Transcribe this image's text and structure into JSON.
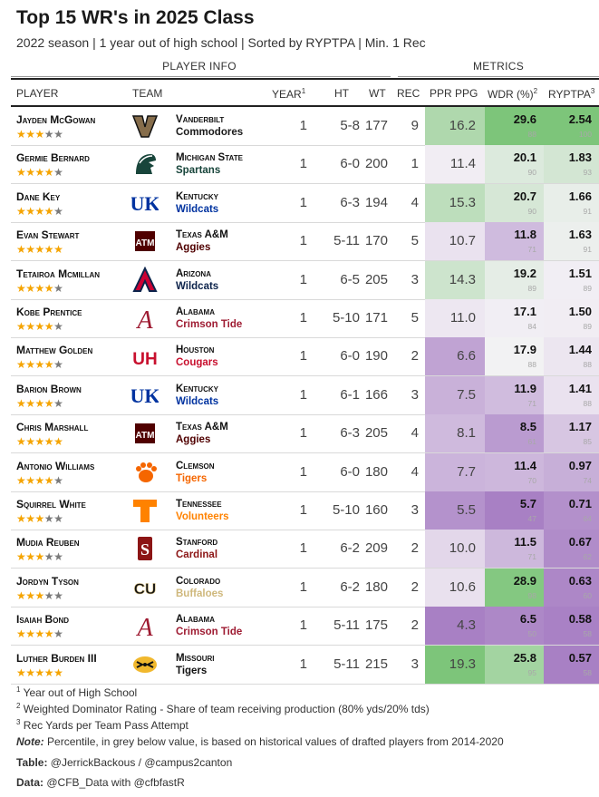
{
  "title": "Top 15 WR's in 2025 Class",
  "subtitle": "2022 season | 1 year out of high school | Sorted by RYPTPA | Min. 1 Rec",
  "spanners": {
    "player_info": "PLAYER INFO",
    "metrics": "METRICS"
  },
  "columns": {
    "player": "PLAYER",
    "team": "TEAM",
    "year": "YEAR",
    "year_sup": "1",
    "ht": "HT",
    "wt": "WT",
    "rec": "REC",
    "ppr": "PPR PPG",
    "wdr": "WDR (%)",
    "wdr_sup": "2",
    "ryptpa": "RYPTPA",
    "ryptpa_sup": "3"
  },
  "rows": [
    {
      "name": "Jayden McGowan",
      "stars": 3,
      "school": "Vanderbilt",
      "nickname": "Commodores",
      "team_color": "#1a1a1a",
      "year": "1",
      "ht": "5-8",
      "wt": "177",
      "rec": "9",
      "ppr": "16.2",
      "wdr": "29.6",
      "wdr_pct": "88",
      "ryptpa": "2.54",
      "ryptpa_pct": "100",
      "logo": "vanderbilt-v-logo"
    },
    {
      "name": "Germie Bernard",
      "stars": 4,
      "school": "Michigan State",
      "nickname": "Spartans",
      "team_color": "#18453b",
      "year": "1",
      "ht": "6-0",
      "wt": "200",
      "rec": "1",
      "ppr": "11.4",
      "wdr": "20.1",
      "wdr_pct": "90",
      "ryptpa": "1.83",
      "ryptpa_pct": "93",
      "logo": "spartan-helmet-logo"
    },
    {
      "name": "Dane Key",
      "stars": 4,
      "school": "Kentucky",
      "nickname": "Wildcats",
      "team_color": "#0033a0",
      "year": "1",
      "ht": "6-3",
      "wt": "194",
      "rec": "4",
      "ppr": "15.3",
      "wdr": "20.7",
      "wdr_pct": "90",
      "ryptpa": "1.66",
      "ryptpa_pct": "91",
      "logo": "uk-logo"
    },
    {
      "name": "Evan Stewart",
      "stars": 5,
      "school": "Texas A&M",
      "nickname": "Aggies",
      "team_color": "#500000",
      "year": "1",
      "ht": "5-11",
      "wt": "170",
      "rec": "5",
      "ppr": "10.7",
      "wdr": "11.8",
      "wdr_pct": "71",
      "ryptpa": "1.63",
      "ryptpa_pct": "91",
      "logo": "atm-logo"
    },
    {
      "name": "Tetairoa Mcmillan",
      "stars": 4,
      "school": "Arizona",
      "nickname": "Wildcats",
      "team_color": "#0c234b",
      "year": "1",
      "ht": "6-5",
      "wt": "205",
      "rec": "3",
      "ppr": "14.3",
      "wdr": "19.2",
      "wdr_pct": "89",
      "ryptpa": "1.51",
      "ryptpa_pct": "89",
      "logo": "arizona-a-logo"
    },
    {
      "name": "Kobe Prentice",
      "stars": 4,
      "school": "Alabama",
      "nickname": "Crimson Tide",
      "team_color": "#9e1b32",
      "year": "1",
      "ht": "5-10",
      "wt": "171",
      "rec": "5",
      "ppr": "11.0",
      "wdr": "17.1",
      "wdr_pct": "84",
      "ryptpa": "1.50",
      "ryptpa_pct": "89",
      "logo": "alabama-a-logo"
    },
    {
      "name": "Matthew Golden",
      "stars": 4,
      "school": "Houston",
      "nickname": "Cougars",
      "team_color": "#c8102e",
      "year": "1",
      "ht": "6-0",
      "wt": "190",
      "rec": "2",
      "ppr": "6.6",
      "wdr": "17.9",
      "wdr_pct": "88",
      "ryptpa": "1.44",
      "ryptpa_pct": "88",
      "logo": "houston-uh-logo"
    },
    {
      "name": "Barion Brown",
      "stars": 4,
      "school": "Kentucky",
      "nickname": "Wildcats",
      "team_color": "#0033a0",
      "year": "1",
      "ht": "6-1",
      "wt": "166",
      "rec": "3",
      "ppr": "7.5",
      "wdr": "11.9",
      "wdr_pct": "71",
      "ryptpa": "1.41",
      "ryptpa_pct": "88",
      "logo": "uk-logo"
    },
    {
      "name": "Chris Marshall",
      "stars": 5,
      "school": "Texas A&M",
      "nickname": "Aggies",
      "team_color": "#500000",
      "year": "1",
      "ht": "6-3",
      "wt": "205",
      "rec": "4",
      "ppr": "8.1",
      "wdr": "8.5",
      "wdr_pct": "61",
      "ryptpa": "1.17",
      "ryptpa_pct": "85",
      "logo": "atm-logo"
    },
    {
      "name": "Antonio Williams",
      "stars": 4,
      "school": "Clemson",
      "nickname": "Tigers",
      "team_color": "#f56600",
      "year": "1",
      "ht": "6-0",
      "wt": "180",
      "rec": "4",
      "ppr": "7.7",
      "wdr": "11.4",
      "wdr_pct": "70",
      "ryptpa": "0.97",
      "ryptpa_pct": "74",
      "logo": "clemson-paw-logo"
    },
    {
      "name": "Squirrel White",
      "stars": 3,
      "school": "Tennessee",
      "nickname": "Volunteers",
      "team_color": "#ff8200",
      "year": "1",
      "ht": "5-10",
      "wt": "160",
      "rec": "3",
      "ppr": "5.5",
      "wdr": "5.7",
      "wdr_pct": "47",
      "ryptpa": "0.71",
      "ryptpa_pct": "64",
      "logo": "tennessee-t-logo"
    },
    {
      "name": "Mudia Reuben",
      "stars": 3,
      "school": "Stanford",
      "nickname": "Cardinal",
      "team_color": "#8c1515",
      "year": "1",
      "ht": "6-2",
      "wt": "209",
      "rec": "2",
      "ppr": "10.0",
      "wdr": "11.5",
      "wdr_pct": "71",
      "ryptpa": "0.67",
      "ryptpa_pct": "62",
      "logo": "stanford-s-logo"
    },
    {
      "name": "Jordyn Tyson",
      "stars": 3,
      "school": "Colorado",
      "nickname": "Buffaloes",
      "team_color": "#cfb87c",
      "year": "1",
      "ht": "6-2",
      "wt": "180",
      "rec": "2",
      "ppr": "10.6",
      "wdr": "28.9",
      "wdr_pct": "98",
      "ryptpa": "0.63",
      "ryptpa_pct": "60",
      "logo": "colorado-cu-logo"
    },
    {
      "name": "Isaiah Bond",
      "stars": 4,
      "school": "Alabama",
      "nickname": "Crimson Tide",
      "team_color": "#9e1b32",
      "year": "1",
      "ht": "5-11",
      "wt": "175",
      "rec": "2",
      "ppr": "4.3",
      "wdr": "6.5",
      "wdr_pct": "50",
      "ryptpa": "0.58",
      "ryptpa_pct": "58",
      "logo": "alabama-a-logo"
    },
    {
      "name": "Luther Burden III",
      "stars": 5,
      "school": "Missouri",
      "nickname": "Tigers",
      "team_color": "#111111",
      "year": "1",
      "ht": "5-11",
      "wt": "215",
      "rec": "3",
      "ppr": "19.3",
      "wdr": "25.8",
      "wdr_pct": "95",
      "ryptpa": "0.57",
      "ryptpa_pct": "58",
      "logo": "missouri-tiger-logo"
    }
  ],
  "footnotes": {
    "f1_sup": "1",
    "f1": "Year out of High School",
    "f2_sup": "2",
    "f2": "Weighted Dominator Rating - Share of team receiving production (80% yds/20% tds)",
    "f3_sup": "3",
    "f3": "Rec Yards per Team Pass Attempt",
    "note_label": "Note:",
    "note": "Percentile, in grey below value, is based on historical values of drafted players from 2014-2020",
    "table_label": "Table:",
    "table": "@JerrickBackous / @campus2canton",
    "data_label": "Data:",
    "data": "@CFB_Data with @cfbfastR"
  },
  "colors": {
    "high": "#7dc57a",
    "mid": "#f5f3f6",
    "low": "#a880c4"
  }
}
